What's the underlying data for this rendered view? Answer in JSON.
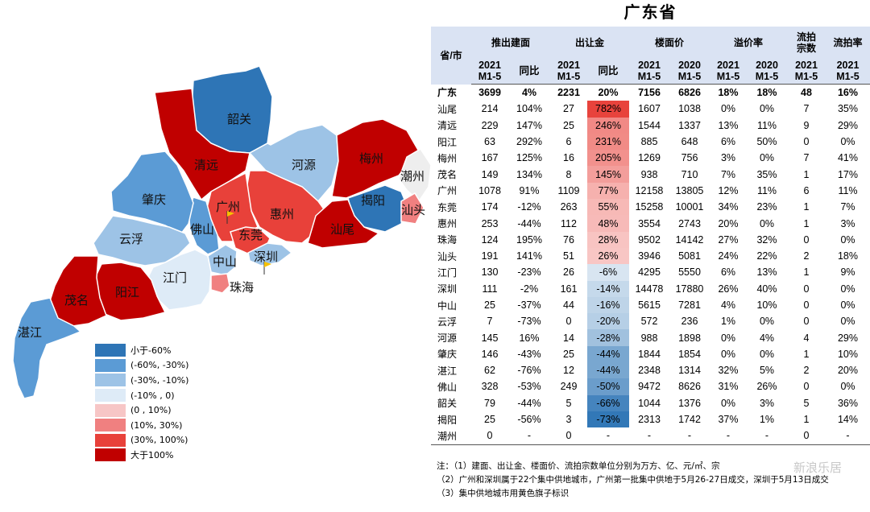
{
  "title": "广东省",
  "map_labels": {
    "shaoguan": "韶关",
    "qingyuan": "清远",
    "heyuan": "河源",
    "meizhou": "梅州",
    "chaozhou": "潮州",
    "zhaoqing": "肇庆",
    "guangzhou": "广州",
    "huizhou": "惠州",
    "jieyang": "揭阳",
    "shantou": "汕头",
    "yunfu": "云浮",
    "foshan": "佛山",
    "dongguan": "东莞",
    "shanwei": "汕尾",
    "zhongshan": "中山",
    "shenzhen": "深圳",
    "jiangmen": "江门",
    "zhuhai": "珠海",
    "maoming": "茂名",
    "yangjiang": "阳江",
    "zhanjiang": "湛江"
  },
  "legend": [
    {
      "label": "小于-60%",
      "color": "#2e75b6"
    },
    {
      "label": "(-60%, -30%)",
      "color": "#5b9bd5"
    },
    {
      "label": "(-30%, -10%)",
      "color": "#9dc3e6"
    },
    {
      "label": "(-10% , 0)",
      "color": "#deebf7"
    },
    {
      "label": "(0 , 10%)",
      "color": "#f7c6c6"
    },
    {
      "label": "(10%, 30%)",
      "color": "#f08080"
    },
    {
      "label": "(30%, 100%)",
      "color": "#e8413a"
    },
    {
      "label": "大于100%",
      "color": "#c00000"
    }
  ],
  "header": {
    "col0": "省/市",
    "groups": [
      "推出建面",
      "出让金",
      "楼面价",
      "溢价率",
      "流拍\n宗数",
      "流拍率"
    ],
    "sub": [
      "2021\nM1-5",
      "同比",
      "2021\nM1-5",
      "同比",
      "2021\nM1-5",
      "2020\nM1-5",
      "2021\nM1-5",
      "2020\nM1-5",
      "2021\nM1-5",
      "2021\nM1-5"
    ]
  },
  "chart_data": {
    "type": "table",
    "columns": [
      "省/市",
      "推出建面 2021 M1-5",
      "推出建面 同比",
      "出让金 2021 M1-5",
      "出让金 同比",
      "楼面价 2021 M1-5",
      "楼面价 2020 M1-5",
      "溢价率 2021 M1-5",
      "溢价率 2020 M1-5",
      "流拍宗数 2021 M1-5",
      "流拍率 2021 M1-5"
    ],
    "rows": [
      [
        "广东",
        "3699",
        "4%",
        "2231",
        "20%",
        "7156",
        "6826",
        "18%",
        "18%",
        "48",
        "16%"
      ],
      [
        "汕尾",
        "214",
        "104%",
        "27",
        "782%",
        "1607",
        "1038",
        "0%",
        "0%",
        "7",
        "35%"
      ],
      [
        "清远",
        "229",
        "147%",
        "25",
        "246%",
        "1544",
        "1337",
        "13%",
        "11%",
        "9",
        "29%"
      ],
      [
        "阳江",
        "63",
        "292%",
        "6",
        "231%",
        "885",
        "648",
        "6%",
        "50%",
        "0",
        "0%"
      ],
      [
        "梅州",
        "167",
        "125%",
        "16",
        "205%",
        "1269",
        "756",
        "3%",
        "0%",
        "7",
        "41%"
      ],
      [
        "茂名",
        "149",
        "134%",
        "8",
        "145%",
        "938",
        "710",
        "7%",
        "35%",
        "1",
        "17%"
      ],
      [
        "广州",
        "1078",
        "91%",
        "1109",
        "77%",
        "12158",
        "13805",
        "12%",
        "11%",
        "6",
        "11%"
      ],
      [
        "东莞",
        "174",
        "-12%",
        "263",
        "55%",
        "15258",
        "10001",
        "34%",
        "23%",
        "1",
        "7%"
      ],
      [
        "惠州",
        "253",
        "-44%",
        "112",
        "48%",
        "3554",
        "2743",
        "20%",
        "0%",
        "1",
        "3%"
      ],
      [
        "珠海",
        "124",
        "195%",
        "76",
        "28%",
        "9502",
        "14142",
        "27%",
        "32%",
        "0",
        "0%"
      ],
      [
        "汕头",
        "191",
        "141%",
        "51",
        "26%",
        "3946",
        "5081",
        "24%",
        "22%",
        "2",
        "18%"
      ],
      [
        "江门",
        "130",
        "-23%",
        "26",
        "-6%",
        "4295",
        "5550",
        "6%",
        "13%",
        "1",
        "9%"
      ],
      [
        "深圳",
        "111",
        "-2%",
        "161",
        "-14%",
        "14478",
        "17880",
        "26%",
        "40%",
        "0",
        "0%"
      ],
      [
        "中山",
        "25",
        "-37%",
        "44",
        "-16%",
        "5615",
        "7281",
        "4%",
        "10%",
        "0",
        "0%"
      ],
      [
        "云浮",
        "7",
        "-73%",
        "0",
        "-20%",
        "572",
        "236",
        "1%",
        "0%",
        "0",
        "0%"
      ],
      [
        "河源",
        "145",
        "16%",
        "14",
        "-28%",
        "988",
        "1898",
        "0%",
        "4%",
        "4",
        "29%"
      ],
      [
        "肇庆",
        "146",
        "-43%",
        "25",
        "-44%",
        "1844",
        "1854",
        "0%",
        "0%",
        "1",
        "10%"
      ],
      [
        "湛江",
        "62",
        "-76%",
        "12",
        "-44%",
        "2348",
        "1314",
        "32%",
        "5%",
        "2",
        "20%"
      ],
      [
        "佛山",
        "328",
        "-53%",
        "249",
        "-50%",
        "9472",
        "8626",
        "31%",
        "26%",
        "0",
        "0%"
      ],
      [
        "韶关",
        "79",
        "-44%",
        "5",
        "-66%",
        "1044",
        "1376",
        "0%",
        "3%",
        "5",
        "36%"
      ],
      [
        "揭阳",
        "25",
        "-56%",
        "3",
        "-73%",
        "2313",
        "1742",
        "37%",
        "1%",
        "1",
        "14%"
      ],
      [
        "潮州",
        "0",
        "-",
        "0",
        "-",
        "-",
        "-",
        "-",
        "-",
        "0",
        "-"
      ]
    ],
    "highlight_column": "出让金 同比",
    "highlight_colors": {
      "positive": "#e8413a",
      "negative": "#2e75b6"
    }
  },
  "notes": {
    "n1": "注：（1）建面、出让金、楼面价、流拍宗数单位分别为万方、亿、元/㎡、宗",
    "n2": "（2）广州和深圳属于22个集中供地城市，广州第一批集中供地于5月26-27日成交，深圳于5月13日成交",
    "n3": "（3）集中供地城市用黄色旗子标识"
  },
  "watermark": "新浪乐居"
}
